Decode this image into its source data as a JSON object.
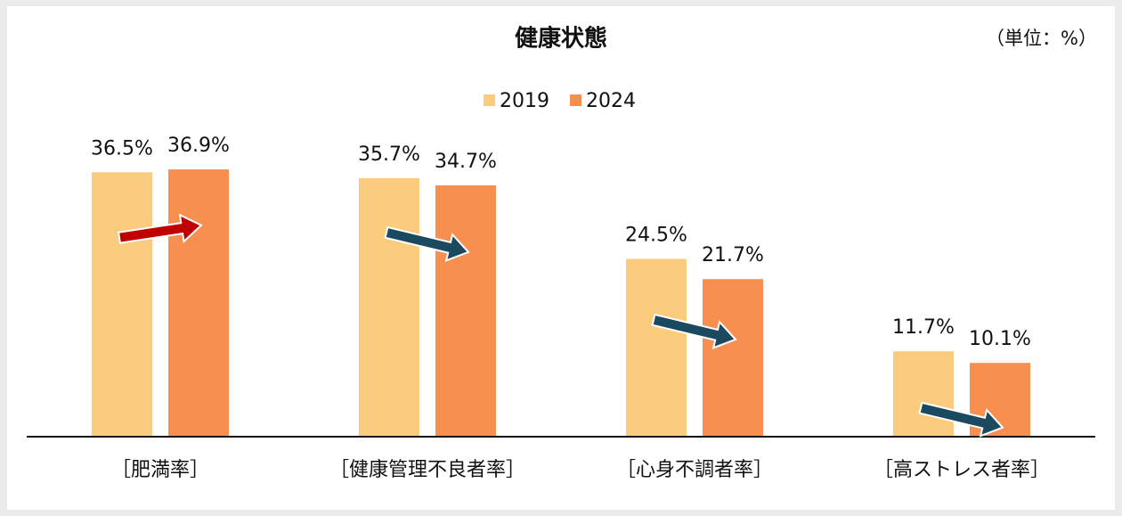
{
  "chart_data": {
    "type": "bar",
    "title": "健康状態",
    "unit_note": "（単位：%）",
    "categories": [
      "［肥満率］",
      "［健康管理不良者率］",
      "［心身不調者率］",
      "［高ストレス者率］"
    ],
    "series": [
      {
        "name": "2019",
        "color": "#fbcb7e",
        "values": [
          36.5,
          35.7,
          24.5,
          11.7
        ],
        "value_labels": [
          "36.5%",
          "35.7%",
          "24.5%",
          "11.7%"
        ]
      },
      {
        "name": "2024",
        "color": "#f68f4f",
        "values": [
          36.9,
          34.7,
          21.7,
          10.1
        ],
        "value_labels": [
          "36.9%",
          "34.7%",
          "21.7%",
          "10.1%"
        ]
      }
    ],
    "legend": "top",
    "trend_arrow_colors": {
      "up": "#c00000",
      "down": "#1b4a60"
    }
  }
}
